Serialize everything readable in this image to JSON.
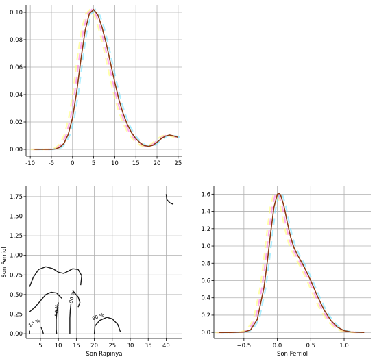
{
  "chart_data": [
    {
      "panel": "top-left",
      "type": "line",
      "title": "",
      "xlabel": "",
      "ylabel": "",
      "xlim": [
        -11,
        26
      ],
      "ylim": [
        -0.005,
        0.105
      ],
      "xticks": [
        -10,
        -5,
        0,
        5,
        10,
        15,
        20,
        25
      ],
      "yticks": [
        0.0,
        0.02,
        0.04,
        0.06,
        0.08,
        0.1
      ],
      "ytick_labels": [
        "0.00",
        "0.02",
        "0.04",
        "0.06",
        "0.08",
        "0.10"
      ],
      "grid": true,
      "line_color": "#8b3a14",
      "series": [
        {
          "x": [
            -9,
            -7,
            -5,
            -4,
            -3,
            -2,
            -1,
            0,
            1,
            2,
            3,
            4,
            5,
            6,
            7,
            8,
            9,
            10,
            11,
            12,
            13,
            14,
            15,
            16,
            17,
            18,
            19,
            20,
            21,
            22,
            23,
            24,
            25
          ],
          "y": [
            0.0,
            0.0,
            0.0,
            0.0003,
            0.0015,
            0.0045,
            0.011,
            0.023,
            0.042,
            0.066,
            0.087,
            0.099,
            0.102,
            0.098,
            0.089,
            0.077,
            0.063,
            0.049,
            0.036,
            0.026,
            0.018,
            0.012,
            0.0078,
            0.0048,
            0.0028,
            0.0022,
            0.003,
            0.0052,
            0.0078,
            0.0097,
            0.0105,
            0.0098,
            0.0088
          ]
        }
      ]
    },
    {
      "panel": "bottom-left",
      "type": "contour",
      "title": "",
      "xlabel": "Son Rapinya",
      "ylabel": "Son Ferriol",
      "xlim": [
        1,
        44.5
      ],
      "ylim": [
        -0.06,
        1.88
      ],
      "xticks": [
        5,
        10,
        15,
        20,
        25,
        30,
        35,
        40
      ],
      "yticks": [
        0.0,
        0.25,
        0.5,
        0.75,
        1.0,
        1.25,
        1.5,
        1.75
      ],
      "ytick_labels": [
        "0.00",
        "0.25",
        "0.50",
        "0.75",
        "1.00",
        "1.25",
        "1.50",
        "1.75"
      ],
      "grid": true,
      "contours": [
        {
          "points": [
            [
              2.0,
              0.6
            ],
            [
              3.0,
              0.72
            ],
            [
              4.5,
              0.82
            ],
            [
              6.5,
              0.855
            ],
            [
              8.5,
              0.83
            ],
            [
              10.0,
              0.785
            ],
            [
              11.5,
              0.77
            ],
            [
              12.8,
              0.8
            ],
            [
              14.0,
              0.83
            ],
            [
              15.5,
              0.82
            ],
            [
              16.5,
              0.74
            ],
            [
              16.2,
              0.62
            ]
          ]
        },
        {
          "points": [
            [
              2.0,
              0.28
            ],
            [
              3.5,
              0.34
            ],
            [
              5.0,
              0.42
            ],
            [
              6.5,
              0.5
            ],
            [
              8.0,
              0.53
            ],
            [
              9.5,
              0.52
            ],
            [
              11.0,
              0.45
            ]
          ]
        },
        {
          "points": [
            [
              14.0,
              0.55
            ],
            [
              14.5,
              0.52
            ],
            [
              15.5,
              0.47
            ],
            [
              16.0,
              0.4
            ],
            [
              15.5,
              0.34
            ]
          ]
        },
        {
          "points": [
            [
              13.5,
              0.38
            ],
            [
              13.3,
              0.3
            ],
            [
              13.2,
              0.2
            ],
            [
              13.2,
              0.08
            ],
            [
              13.2,
              0.0
            ]
          ]
        },
        {
          "points": [
            [
              10.0,
              0.4
            ],
            [
              9.6,
              0.3
            ],
            [
              9.4,
              0.18
            ],
            [
              9.4,
              0.06
            ],
            [
              9.5,
              0.0
            ]
          ]
        },
        {
          "points": [
            [
              2.0,
              0.04
            ],
            [
              2.0,
              0.0
            ]
          ]
        },
        {
          "points": [
            [
              5.2,
              0.08
            ],
            [
              5.6,
              0.04
            ],
            [
              5.8,
              0.0
            ]
          ]
        },
        {
          "points": [
            [
              20.0,
              0.0
            ],
            [
              20.2,
              0.1
            ],
            [
              21.5,
              0.17
            ],
            [
              23.5,
              0.21
            ],
            [
              25.0,
              0.19
            ],
            [
              26.5,
              0.12
            ],
            [
              27.3,
              0.02
            ]
          ]
        },
        {
          "points": [
            [
              40.0,
              1.78
            ],
            [
              40.2,
              1.71
            ],
            [
              41.0,
              1.67
            ],
            [
              42.0,
              1.65
            ]
          ]
        }
      ],
      "contour_labels": [
        {
          "text": "10 %",
          "x": 3.5,
          "y": 0.12,
          "angle": -28
        },
        {
          "text": "50 %",
          "x": 10.0,
          "y": 0.3,
          "angle": -88
        },
        {
          "text": "90 %",
          "x": 14.3,
          "y": 0.46,
          "angle": -72
        },
        {
          "text": "90 %",
          "x": 21.2,
          "y": 0.2,
          "angle": -20
        }
      ]
    },
    {
      "panel": "bottom-right",
      "type": "line",
      "title": "",
      "xlabel": "Son Ferriol",
      "ylabel": "",
      "xlim": [
        -0.95,
        1.4
      ],
      "ylim": [
        -0.07,
        1.69
      ],
      "xticks": [
        -0.5,
        0.0,
        0.5,
        1.0
      ],
      "xtick_labels": [
        "−0.5",
        "0.0",
        "0.5",
        "1.0"
      ],
      "yticks": [
        0.0,
        0.2,
        0.4,
        0.6,
        0.8,
        1.0,
        1.2,
        1.4,
        1.6
      ],
      "ytick_labels": [
        "0.0",
        "0.2",
        "0.4",
        "0.6",
        "0.8",
        "1.0",
        "1.2",
        "1.4",
        "1.6"
      ],
      "grid": true,
      "line_color": "#8b3a14",
      "series": [
        {
          "x": [
            -0.87,
            -0.7,
            -0.5,
            -0.4,
            -0.3,
            -0.2,
            -0.15,
            -0.1,
            -0.05,
            0.0,
            0.03,
            0.05,
            0.1,
            0.15,
            0.2,
            0.25,
            0.3,
            0.4,
            0.5,
            0.6,
            0.7,
            0.8,
            0.9,
            1.0,
            1.1,
            1.2,
            1.3
          ],
          "y": [
            0.0,
            0.0,
            0.004,
            0.03,
            0.15,
            0.52,
            0.82,
            1.15,
            1.45,
            1.6,
            1.61,
            1.59,
            1.46,
            1.27,
            1.1,
            0.98,
            0.9,
            0.76,
            0.6,
            0.42,
            0.26,
            0.14,
            0.06,
            0.02,
            0.005,
            0.001,
            0.0
          ]
        }
      ]
    }
  ]
}
